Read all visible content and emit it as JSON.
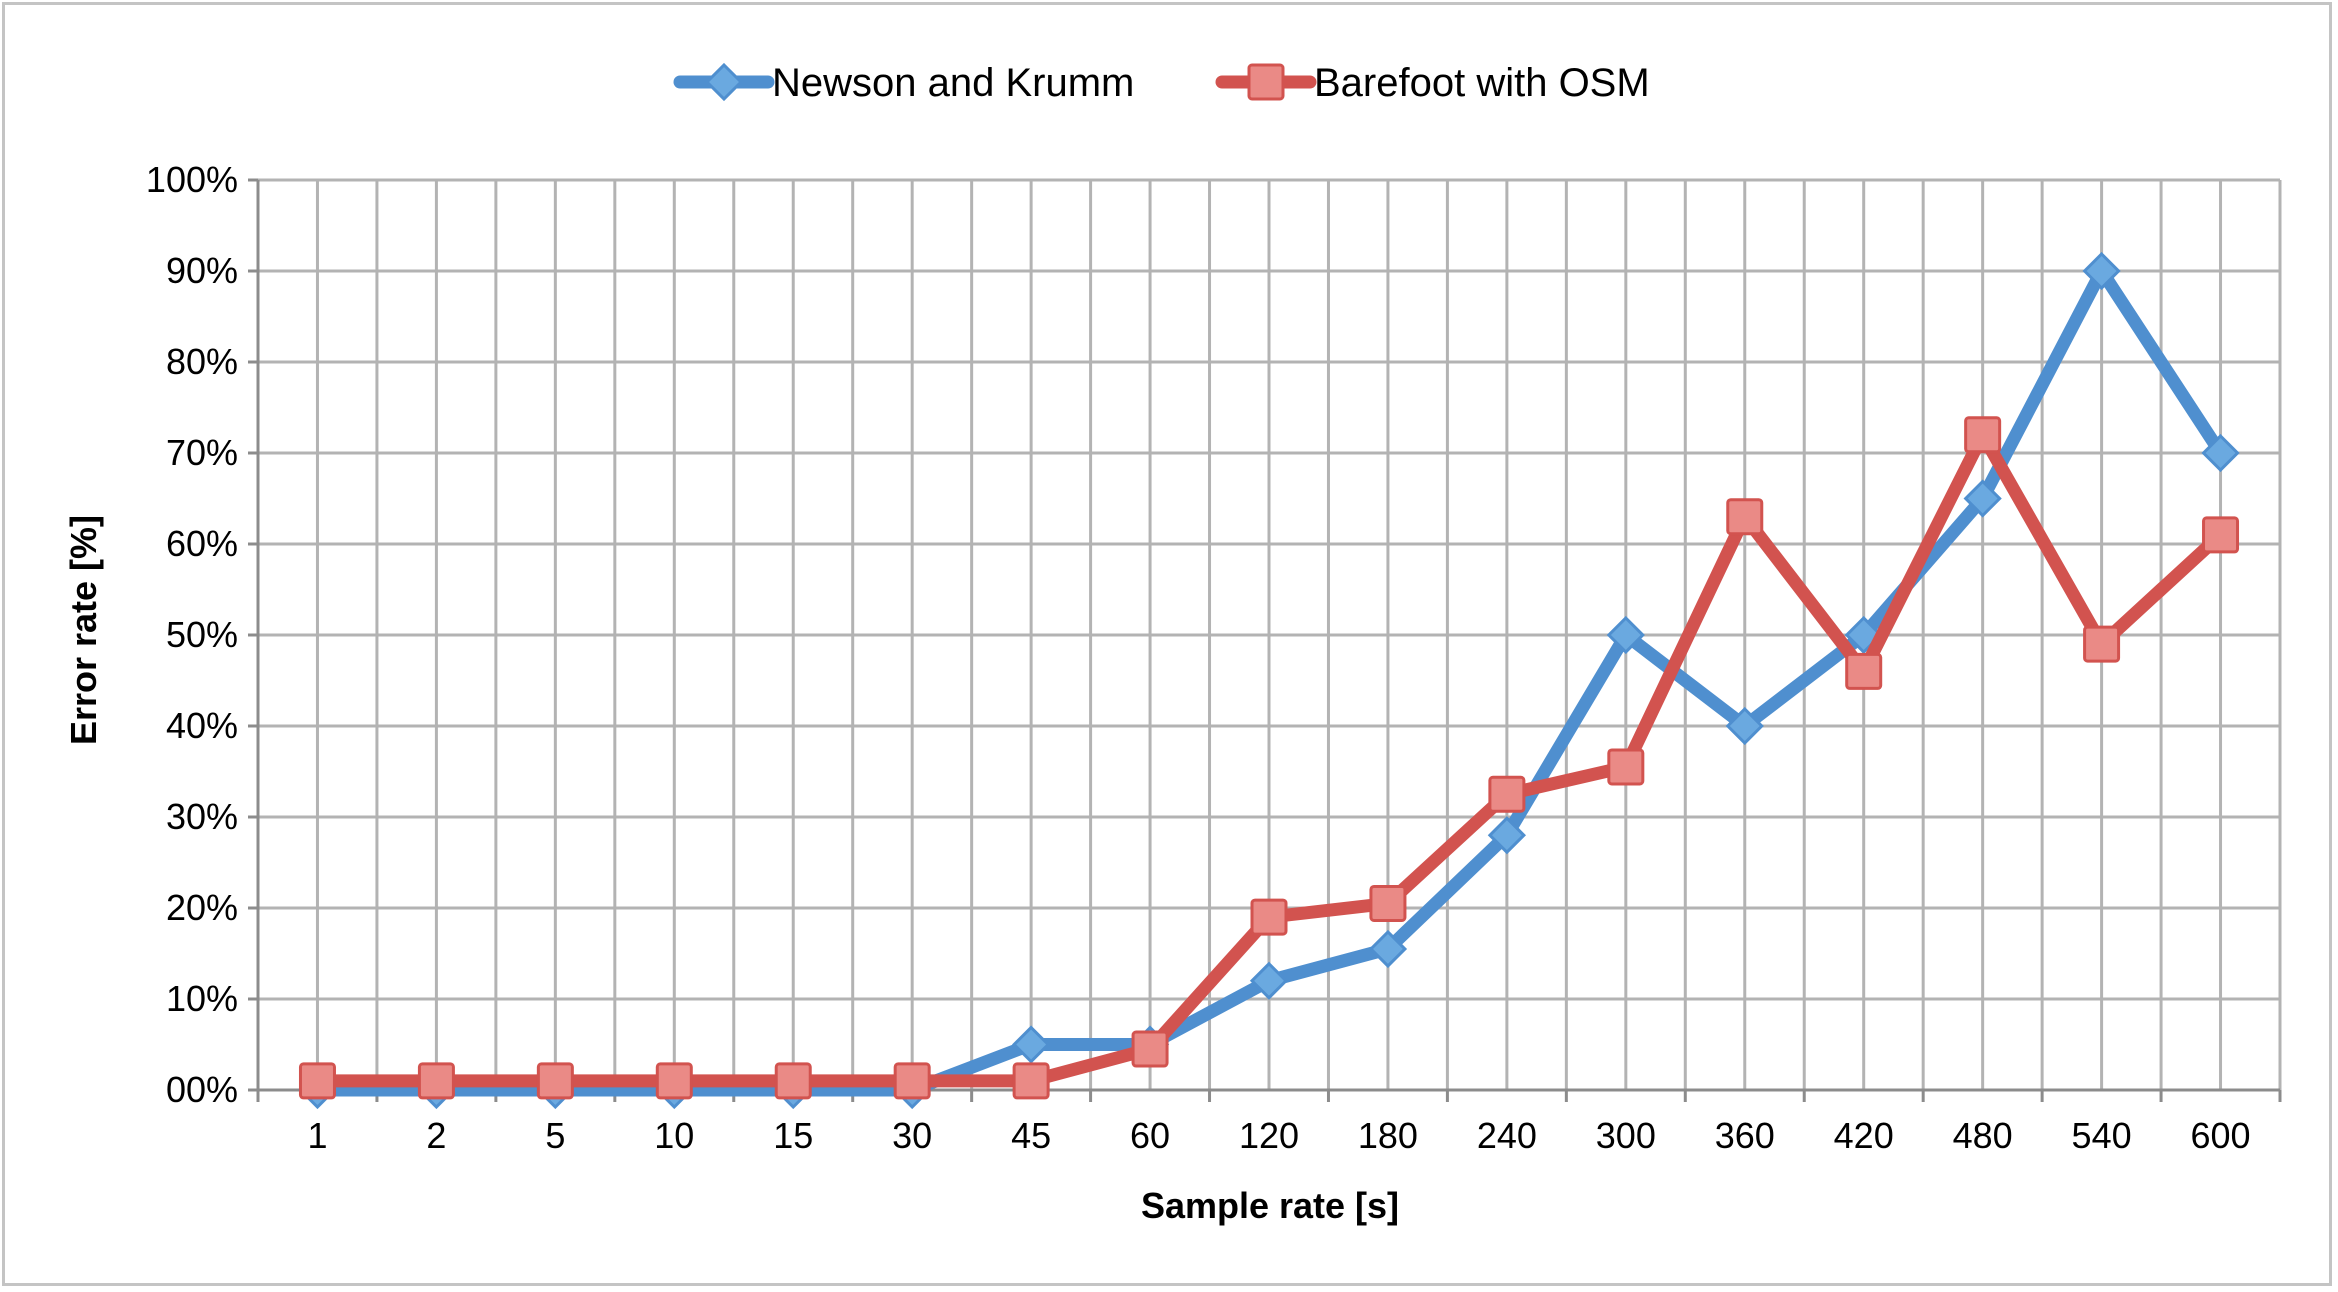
{
  "chart_data": {
    "type": "line",
    "title": "",
    "xlabel": "Sample rate [s]",
    "ylabel": "Error rate [%]",
    "categories": [
      "1",
      "2",
      "5",
      "10",
      "15",
      "30",
      "45",
      "60",
      "120",
      "180",
      "240",
      "300",
      "360",
      "420",
      "480",
      "540",
      "600"
    ],
    "y_ticks": [
      "00%",
      "10%",
      "20%",
      "30%",
      "40%",
      "50%",
      "60%",
      "70%",
      "80%",
      "90%",
      "100%"
    ],
    "ylim": [
      0,
      100
    ],
    "grid": true,
    "legend_position": "top-center",
    "series": [
      {
        "name": "Newson and Krumm",
        "color": "#4f8fcf",
        "marker": "diamond",
        "values": [
          0,
          0,
          0,
          0,
          0,
          0,
          5,
          5,
          12,
          15.5,
          28,
          50,
          40,
          50,
          65,
          90,
          70
        ]
      },
      {
        "name": "Barefoot with OSM",
        "color": "#d2534f",
        "marker": "square",
        "values": [
          1,
          1,
          1,
          1,
          1,
          1,
          1,
          4.5,
          19,
          20.5,
          32.5,
          35.5,
          63,
          46,
          72,
          49,
          61
        ]
      }
    ]
  }
}
